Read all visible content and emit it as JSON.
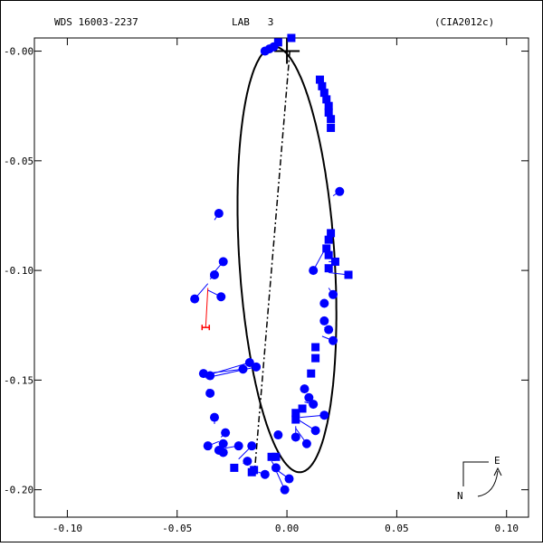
{
  "header": {
    "left": "WDS 16003-2237",
    "center": "LAB   3",
    "right": "(CIA2012c)"
  },
  "compass": {
    "east": "E",
    "north": "N"
  },
  "colors": {
    "observation": "#0000ff",
    "residual_line": "#0000ff",
    "outlier": "#ff0000",
    "orbit": "#000000",
    "frame": "#000000"
  },
  "chart_data": {
    "type": "scatter",
    "title": "",
    "xlabel": "",
    "ylabel": "",
    "xlim": [
      -0.115,
      0.11
    ],
    "ylim": [
      -0.2125,
      0.006
    ],
    "xticks": [
      {
        "value": -0.1,
        "label": "-0.10"
      },
      {
        "value": -0.05,
        "label": "-0.05"
      },
      {
        "value": 0.0,
        "label": "0.00"
      },
      {
        "value": 0.05,
        "label": "0.05"
      },
      {
        "value": 0.1,
        "label": "0.10"
      }
    ],
    "yticks": [
      {
        "value": 0.0,
        "label": "-0.00"
      },
      {
        "value": -0.05,
        "label": "-0.05"
      },
      {
        "value": -0.1,
        "label": "-0.10"
      },
      {
        "value": -0.15,
        "label": "-0.15"
      },
      {
        "value": -0.2,
        "label": "-0.20"
      }
    ],
    "primary": {
      "x": 0.0,
      "y": 0.0
    },
    "orbit": {
      "center": [
        0.0,
        -0.095
      ],
      "a": 0.0972,
      "b": 0.0217,
      "tilt_deg": 93.6
    },
    "line_of_nodes": {
      "x1": 0.0013,
      "y1": 0.0,
      "x2": -0.0148,
      "y2": -0.1925
    },
    "observations": [
      {
        "x": 0.002,
        "y": 0.006,
        "ox": 0.0018,
        "oy": 0.0055,
        "m": "s"
      },
      {
        "x": -0.004,
        "y": 0.004,
        "ox": -0.0042,
        "oy": 0.0045,
        "m": "s"
      },
      {
        "x": -0.006,
        "y": 0.002,
        "ox": -0.0065,
        "oy": 0.002,
        "m": "p"
      },
      {
        "x": -0.008,
        "y": 0.001,
        "ox": -0.0085,
        "oy": 0.0005,
        "m": "p"
      },
      {
        "x": -0.01,
        "y": 0.0,
        "ox": -0.0095,
        "oy": -0.001,
        "m": "p"
      },
      {
        "x": 0.015,
        "y": -0.013,
        "ox": 0.0155,
        "oy": -0.012,
        "m": "s"
      },
      {
        "x": 0.016,
        "y": -0.016,
        "ox": 0.016,
        "oy": -0.016,
        "m": "s"
      },
      {
        "x": 0.017,
        "y": -0.019,
        "ox": 0.017,
        "oy": -0.019,
        "m": "s"
      },
      {
        "x": 0.018,
        "y": -0.022,
        "ox": 0.018,
        "oy": -0.022,
        "m": "s"
      },
      {
        "x": 0.019,
        "y": -0.025,
        "ox": 0.019,
        "oy": -0.025,
        "m": "s"
      },
      {
        "x": 0.019,
        "y": -0.028,
        "ox": 0.019,
        "oy": -0.028,
        "m": "s"
      },
      {
        "x": 0.02,
        "y": -0.031,
        "ox": 0.02,
        "oy": -0.031,
        "m": "s"
      },
      {
        "x": 0.02,
        "y": -0.035,
        "ox": 0.02,
        "oy": -0.035,
        "m": "s"
      },
      {
        "x": 0.024,
        "y": -0.064,
        "ox": 0.021,
        "oy": -0.066,
        "m": "p"
      },
      {
        "x": -0.031,
        "y": -0.074,
        "ox": -0.033,
        "oy": -0.077,
        "m": "p"
      },
      {
        "x": 0.02,
        "y": -0.083,
        "ox": 0.02,
        "oy": -0.084,
        "m": "s"
      },
      {
        "x": 0.019,
        "y": -0.086,
        "ox": 0.019,
        "oy": -0.087,
        "m": "s"
      },
      {
        "x": 0.018,
        "y": -0.09,
        "ox": 0.018,
        "oy": -0.09,
        "m": "s"
      },
      {
        "x": 0.019,
        "y": -0.093,
        "ox": 0.019,
        "oy": -0.093,
        "m": "s"
      },
      {
        "x": 0.022,
        "y": -0.096,
        "ox": 0.019,
        "oy": -0.096,
        "m": "s"
      },
      {
        "x": 0.019,
        "y": -0.099,
        "ox": 0.019,
        "oy": -0.099,
        "m": "s"
      },
      {
        "x": 0.028,
        "y": -0.102,
        "ox": 0.019,
        "oy": -0.101,
        "m": "s"
      },
      {
        "x": 0.012,
        "y": -0.1,
        "ox": 0.018,
        "oy": -0.089,
        "m": "p"
      },
      {
        "x": -0.029,
        "y": -0.096,
        "ox": -0.035,
        "oy": -0.103,
        "m": "p"
      },
      {
        "x": -0.033,
        "y": -0.102,
        "ox": -0.035,
        "oy": -0.104,
        "m": "p"
      },
      {
        "x": -0.03,
        "y": -0.112,
        "ox": -0.036,
        "oy": -0.109,
        "m": "p"
      },
      {
        "x": -0.042,
        "y": -0.113,
        "ox": -0.036,
        "oy": -0.106,
        "m": "p"
      },
      {
        "x": 0.021,
        "y": -0.111,
        "ox": 0.019,
        "oy": -0.108,
        "m": "p"
      },
      {
        "x": 0.017,
        "y": -0.115,
        "ox": 0.018,
        "oy": -0.115,
        "m": "p"
      },
      {
        "x": 0.017,
        "y": -0.123,
        "ox": 0.017,
        "oy": -0.123,
        "m": "p"
      },
      {
        "x": 0.019,
        "y": -0.127,
        "ox": 0.017,
        "oy": -0.126,
        "m": "p"
      },
      {
        "x": 0.021,
        "y": -0.132,
        "ox": 0.016,
        "oy": -0.13,
        "m": "p"
      },
      {
        "x": 0.013,
        "y": -0.135,
        "ox": 0.014,
        "oy": -0.135,
        "m": "s"
      },
      {
        "x": 0.013,
        "y": -0.14,
        "ox": 0.013,
        "oy": -0.14,
        "m": "s"
      },
      {
        "x": 0.011,
        "y": -0.147,
        "ox": 0.011,
        "oy": -0.147,
        "m": "s"
      },
      {
        "x": -0.02,
        "y": -0.145,
        "ox": -0.037,
        "oy": -0.147,
        "m": "p"
      },
      {
        "x": -0.017,
        "y": -0.142,
        "ox": -0.037,
        "oy": -0.148,
        "m": "p"
      },
      {
        "x": -0.014,
        "y": -0.144,
        "ox": -0.037,
        "oy": -0.149,
        "m": "p"
      },
      {
        "x": -0.038,
        "y": -0.147,
        "ox": -0.037,
        "oy": -0.147,
        "m": "p"
      },
      {
        "x": -0.035,
        "y": -0.148,
        "ox": -0.037,
        "oy": -0.148,
        "m": "p"
      },
      {
        "x": -0.035,
        "y": -0.156,
        "ox": -0.036,
        "oy": -0.154,
        "m": "p"
      },
      {
        "x": 0.008,
        "y": -0.154,
        "ox": 0.009,
        "oy": -0.154,
        "m": "p"
      },
      {
        "x": 0.01,
        "y": -0.158,
        "ox": 0.009,
        "oy": -0.157,
        "m": "p"
      },
      {
        "x": 0.012,
        "y": -0.161,
        "ox": 0.008,
        "oy": -0.16,
        "m": "p"
      },
      {
        "x": 0.007,
        "y": -0.163,
        "ox": 0.007,
        "oy": -0.163,
        "m": "s"
      },
      {
        "x": 0.004,
        "y": -0.165,
        "ox": 0.004,
        "oy": -0.165,
        "m": "s"
      },
      {
        "x": 0.004,
        "y": -0.168,
        "ox": 0.004,
        "oy": -0.168,
        "m": "s"
      },
      {
        "x": 0.017,
        "y": -0.166,
        "ox": 0.006,
        "oy": -0.167,
        "m": "p"
      },
      {
        "x": 0.013,
        "y": -0.173,
        "ox": 0.005,
        "oy": -0.168,
        "m": "p"
      },
      {
        "x": 0.004,
        "y": -0.176,
        "ox": 0.004,
        "oy": -0.171,
        "m": "p"
      },
      {
        "x": 0.009,
        "y": -0.179,
        "ox": 0.004,
        "oy": -0.172,
        "m": "p"
      },
      {
        "x": -0.004,
        "y": -0.175,
        "ox": -0.004,
        "oy": -0.175,
        "m": "p"
      },
      {
        "x": -0.033,
        "y": -0.167,
        "ox": -0.033,
        "oy": -0.17,
        "m": "p"
      },
      {
        "x": -0.028,
        "y": -0.174,
        "ox": -0.03,
        "oy": -0.176,
        "m": "p"
      },
      {
        "x": -0.036,
        "y": -0.18,
        "ox": -0.031,
        "oy": -0.178,
        "m": "p"
      },
      {
        "x": -0.029,
        "y": -0.179,
        "ox": -0.03,
        "oy": -0.178,
        "m": "p"
      },
      {
        "x": -0.031,
        "y": -0.182,
        "ox": -0.03,
        "oy": -0.18,
        "m": "p"
      },
      {
        "x": -0.022,
        "y": -0.18,
        "ox": -0.028,
        "oy": -0.181,
        "m": "p"
      },
      {
        "x": -0.029,
        "y": -0.183,
        "ox": -0.027,
        "oy": -0.183,
        "m": "p"
      },
      {
        "x": -0.016,
        "y": -0.18,
        "ox": -0.022,
        "oy": -0.186,
        "m": "p"
      },
      {
        "x": -0.018,
        "y": -0.187,
        "ox": -0.02,
        "oy": -0.188,
        "m": "p"
      },
      {
        "x": -0.024,
        "y": -0.19,
        "ox": -0.023,
        "oy": -0.189,
        "m": "s"
      },
      {
        "x": -0.015,
        "y": -0.191,
        "ox": -0.015,
        "oy": -0.191,
        "m": "s"
      },
      {
        "x": -0.016,
        "y": -0.192,
        "ox": -0.016,
        "oy": -0.192,
        "m": "s"
      },
      {
        "x": -0.007,
        "y": -0.185,
        "ox": -0.007,
        "oy": -0.185,
        "m": "s"
      },
      {
        "x": -0.005,
        "y": -0.185,
        "ox": -0.006,
        "oy": -0.186,
        "m": "s"
      },
      {
        "x": -0.01,
        "y": -0.193,
        "ox": -0.013,
        "oy": -0.192,
        "m": "p"
      },
      {
        "x": -0.005,
        "y": -0.19,
        "ox": -0.007,
        "oy": -0.187,
        "m": "p"
      },
      {
        "x": -0.001,
        "y": -0.2,
        "ox": -0.006,
        "oy": -0.189,
        "m": "p"
      },
      {
        "x": 0.001,
        "y": -0.195,
        "ox": -0.006,
        "oy": -0.19,
        "m": "p"
      }
    ],
    "outlier": {
      "x": -0.037,
      "y": -0.126,
      "ox": -0.036,
      "oy": -0.108
    }
  }
}
